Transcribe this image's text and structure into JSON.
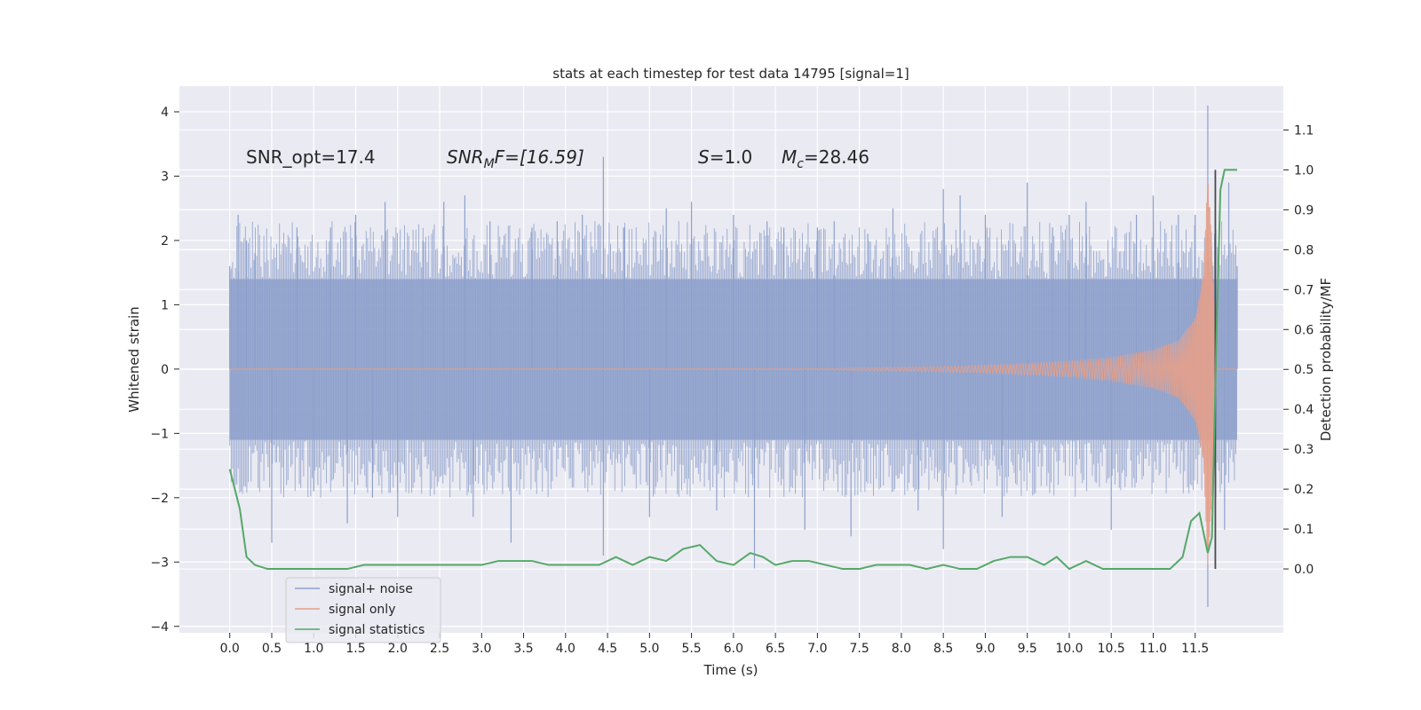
{
  "chart_data": {
    "type": "line",
    "title": "stats at each timestep for test data 14795 [signal=1]",
    "xlabel": "Time (s)",
    "ylabel": "Whitened strain",
    "y2label": "Detection probability/MF",
    "xlim": [
      -0.6,
      12.55
    ],
    "ylim": [
      -4.1,
      4.4
    ],
    "y2lim": [
      -0.16,
      1.21
    ],
    "grid": true,
    "legend_position": "lower-left",
    "x_ticks": [
      "0.0",
      "0.5",
      "1.0",
      "1.5",
      "2.0",
      "2.5",
      "3.0",
      "3.5",
      "4.0",
      "4.5",
      "5.0",
      "5.5",
      "6.0",
      "6.5",
      "7.0",
      "7.5",
      "8.0",
      "8.5",
      "9.0",
      "9.5",
      "10.0",
      "10.5",
      "11.0",
      "11.5"
    ],
    "y_ticks": [
      "4",
      "3",
      "2",
      "1",
      "0",
      "−1",
      "−2",
      "−3",
      "−4"
    ],
    "y2_ticks": [
      "1.1",
      "1.0",
      "0.9",
      "0.8",
      "0.7",
      "0.6",
      "0.5",
      "0.4",
      "0.3",
      "0.2",
      "0.1",
      "0.0"
    ],
    "annotations": {
      "snr_opt": "SNR_opt=17.4",
      "snr_mf_main": "SNR",
      "snr_mf_sub": "M",
      "snr_mf_rest": "F=[16.59]",
      "s_main": "S",
      "s_rest": "=1.0",
      "mc_main": "M",
      "mc_sub": "c",
      "mc_rest": "=28.46"
    },
    "merger_marker_x": 11.74,
    "series": [
      {
        "name": "signal+ noise",
        "color": "#8da0cb",
        "axis": "left",
        "x_range": [
          0.0,
          12.0
        ],
        "envelope_low": -1.1,
        "envelope_high": 1.4,
        "peaks": [
          [
            0.0,
            1.6
          ],
          [
            0.1,
            2.4
          ],
          [
            0.2,
            2.0
          ],
          [
            0.3,
            1.8
          ],
          [
            0.5,
            -2.7
          ],
          [
            0.8,
            2.2
          ],
          [
            1.0,
            -1.9
          ],
          [
            1.2,
            2.2
          ],
          [
            1.4,
            -2.4
          ],
          [
            1.5,
            2.4
          ],
          [
            1.7,
            -2.0
          ],
          [
            1.85,
            2.6
          ],
          [
            2.0,
            -2.3
          ],
          [
            2.3,
            2.0
          ],
          [
            2.55,
            2.6
          ],
          [
            2.8,
            2.7
          ],
          [
            2.9,
            -2.3
          ],
          [
            3.1,
            2.3
          ],
          [
            3.35,
            -2.7
          ],
          [
            3.6,
            2.2
          ],
          [
            3.9,
            2.3
          ],
          [
            4.2,
            2.4
          ],
          [
            4.45,
            3.3
          ],
          [
            4.45,
            -2.9
          ],
          [
            4.7,
            2.2
          ],
          [
            5.0,
            -2.3
          ],
          [
            5.2,
            2.5
          ],
          [
            5.5,
            2.6
          ],
          [
            5.8,
            -2.2
          ],
          [
            6.0,
            2.4
          ],
          [
            6.25,
            -3.1
          ],
          [
            6.4,
            2.3
          ],
          [
            6.6,
            2.2
          ],
          [
            6.85,
            -2.5
          ],
          [
            7.0,
            2.2
          ],
          [
            7.2,
            2.3
          ],
          [
            7.4,
            -2.6
          ],
          [
            7.6,
            2.1
          ],
          [
            7.9,
            2.5
          ],
          [
            8.2,
            -2.2
          ],
          [
            8.5,
            2.8
          ],
          [
            8.5,
            -2.8
          ],
          [
            8.7,
            2.7
          ],
          [
            9.0,
            2.4
          ],
          [
            9.2,
            -2.3
          ],
          [
            9.5,
            2.9
          ],
          [
            9.8,
            2.2
          ],
          [
            10.0,
            2.4
          ],
          [
            10.2,
            2.6
          ],
          [
            10.5,
            -2.5
          ],
          [
            10.8,
            2.4
          ],
          [
            11.0,
            2.7
          ],
          [
            11.3,
            2.4
          ],
          [
            11.5,
            2.4
          ],
          [
            11.65,
            4.1
          ],
          [
            11.65,
            -3.7
          ],
          [
            11.9,
            2.9
          ],
          [
            11.85,
            -2.5
          ],
          [
            12.0,
            1.6
          ]
        ]
      },
      {
        "name": "signal only",
        "color": "#e5a08a",
        "axis": "left",
        "x": [
          0.0,
          7.0,
          8.0,
          9.0,
          10.0,
          10.5,
          11.0,
          11.3,
          11.5,
          11.6,
          11.65,
          11.7,
          11.75,
          12.0
        ],
        "amplitude": [
          0.0,
          0.01,
          0.03,
          0.06,
          0.12,
          0.18,
          0.3,
          0.45,
          0.8,
          1.5,
          3.1,
          2.0,
          0.0,
          0.0
        ]
      },
      {
        "name": "signal statistics",
        "color": "#55a868",
        "axis": "right",
        "x": [
          0.0,
          0.12,
          0.2,
          0.3,
          0.45,
          0.6,
          0.8,
          1.0,
          1.2,
          1.4,
          1.6,
          1.8,
          2.0,
          2.2,
          2.4,
          2.6,
          2.8,
          3.0,
          3.2,
          3.4,
          3.6,
          3.8,
          4.0,
          4.2,
          4.4,
          4.6,
          4.8,
          5.0,
          5.2,
          5.4,
          5.6,
          5.7,
          5.8,
          6.0,
          6.2,
          6.35,
          6.5,
          6.7,
          6.9,
          7.1,
          7.3,
          7.5,
          7.7,
          7.9,
          8.1,
          8.3,
          8.5,
          8.7,
          8.9,
          9.1,
          9.3,
          9.5,
          9.7,
          9.85,
          10.0,
          10.2,
          10.4,
          10.6,
          10.8,
          11.0,
          11.2,
          11.35,
          11.45,
          11.55,
          11.65,
          11.7,
          11.75,
          11.8,
          11.85,
          11.9,
          12.0
        ],
        "y": [
          0.25,
          0.15,
          0.03,
          0.01,
          0.0,
          0.0,
          0.0,
          0.0,
          0.0,
          0.0,
          0.01,
          0.01,
          0.01,
          0.01,
          0.01,
          0.01,
          0.01,
          0.01,
          0.02,
          0.02,
          0.02,
          0.01,
          0.01,
          0.01,
          0.01,
          0.03,
          0.01,
          0.03,
          0.02,
          0.05,
          0.06,
          0.04,
          0.02,
          0.01,
          0.04,
          0.03,
          0.01,
          0.02,
          0.02,
          0.01,
          0.0,
          0.0,
          0.01,
          0.01,
          0.01,
          0.0,
          0.01,
          0.0,
          0.0,
          0.02,
          0.03,
          0.03,
          0.01,
          0.03,
          0.0,
          0.02,
          0.0,
          0.0,
          0.0,
          0.0,
          0.0,
          0.03,
          0.12,
          0.14,
          0.04,
          0.08,
          0.55,
          0.95,
          1.0,
          1.0,
          1.0
        ]
      }
    ]
  }
}
